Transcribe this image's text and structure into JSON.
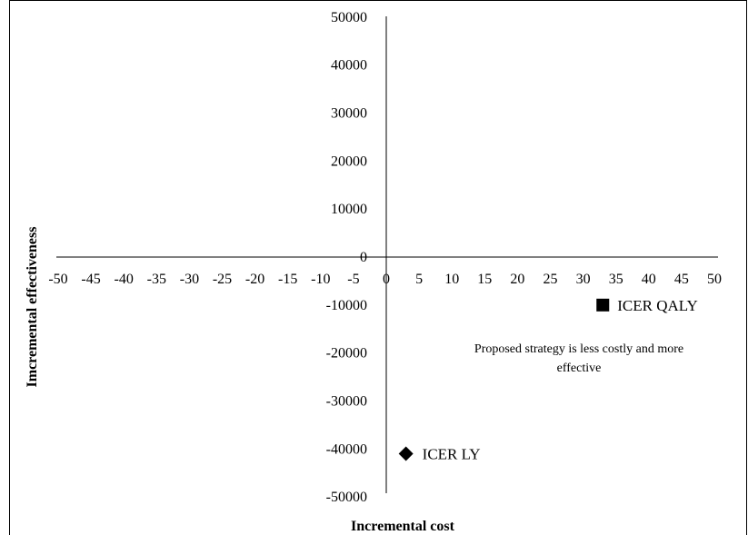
{
  "chart_data": {
    "type": "scatter",
    "xlabel": "Incremental cost",
    "ylabel": "Imcremental effectiveness",
    "xlim": [
      -50,
      50
    ],
    "ylim": [
      -50000,
      50000
    ],
    "x_ticks": [
      -50,
      -45,
      -40,
      -35,
      -30,
      -25,
      -20,
      -15,
      -10,
      -5,
      0,
      5,
      10,
      15,
      20,
      25,
      30,
      35,
      40,
      45,
      50
    ],
    "y_ticks": [
      50000,
      40000,
      30000,
      20000,
      10000,
      0,
      -10000,
      -20000,
      -30000,
      -40000,
      -50000
    ],
    "grid": false,
    "points": [
      {
        "label": "ICER QALY",
        "x": 33,
        "y": -10000,
        "marker": "square"
      },
      {
        "label": "ICER LY",
        "x": 3,
        "y": -41000,
        "marker": "diamond"
      }
    ],
    "annotations": [
      "Proposed strategy is less costly and more",
      "effective"
    ]
  }
}
